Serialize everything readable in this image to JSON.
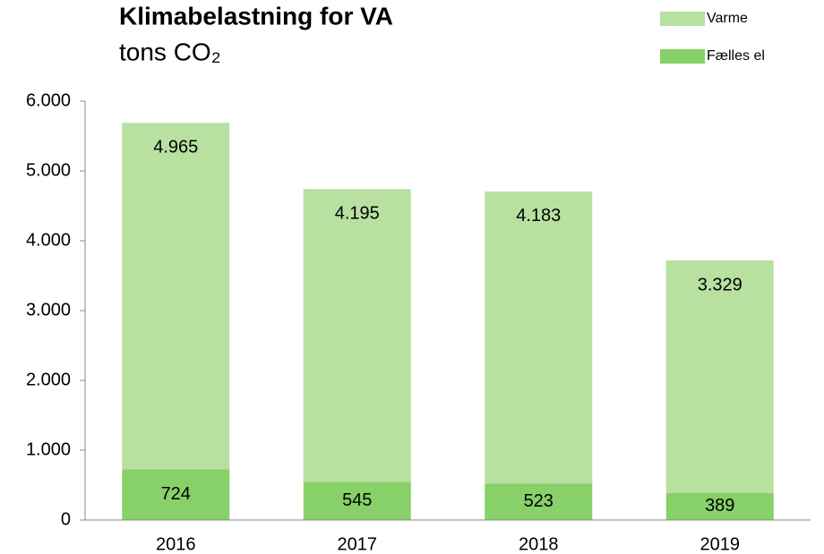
{
  "chart_data": {
    "type": "stacked_bar",
    "title": "Klimabelastning for VA",
    "subtitle": "tons CO₂",
    "categories": [
      "2016",
      "2017",
      "2018",
      "2019"
    ],
    "series": [
      {
        "name": "Fælles el",
        "color": "#88d068",
        "values": [
          724,
          545,
          523,
          389
        ]
      },
      {
        "name": "Varme",
        "color": "#b8e0a0",
        "values": [
          4965,
          4195,
          4183,
          3329
        ],
        "value_labels": [
          "4.965",
          "4.195",
          "4.183",
          "3.329"
        ]
      }
    ],
    "ylim": [
      0,
      6000
    ],
    "yticks": [
      0,
      {
        "value": 1000,
        "label": "1.000"
      },
      {
        "value": 2000,
        "label": "2.000"
      },
      {
        "value": 3000,
        "label": "3.000"
      },
      {
        "value": 4000,
        "label": "4.000"
      },
      {
        "value": 5000,
        "label": "5.000"
      },
      {
        "value": 6000,
        "label": "6.000"
      }
    ],
    "legend": "top-right"
  }
}
